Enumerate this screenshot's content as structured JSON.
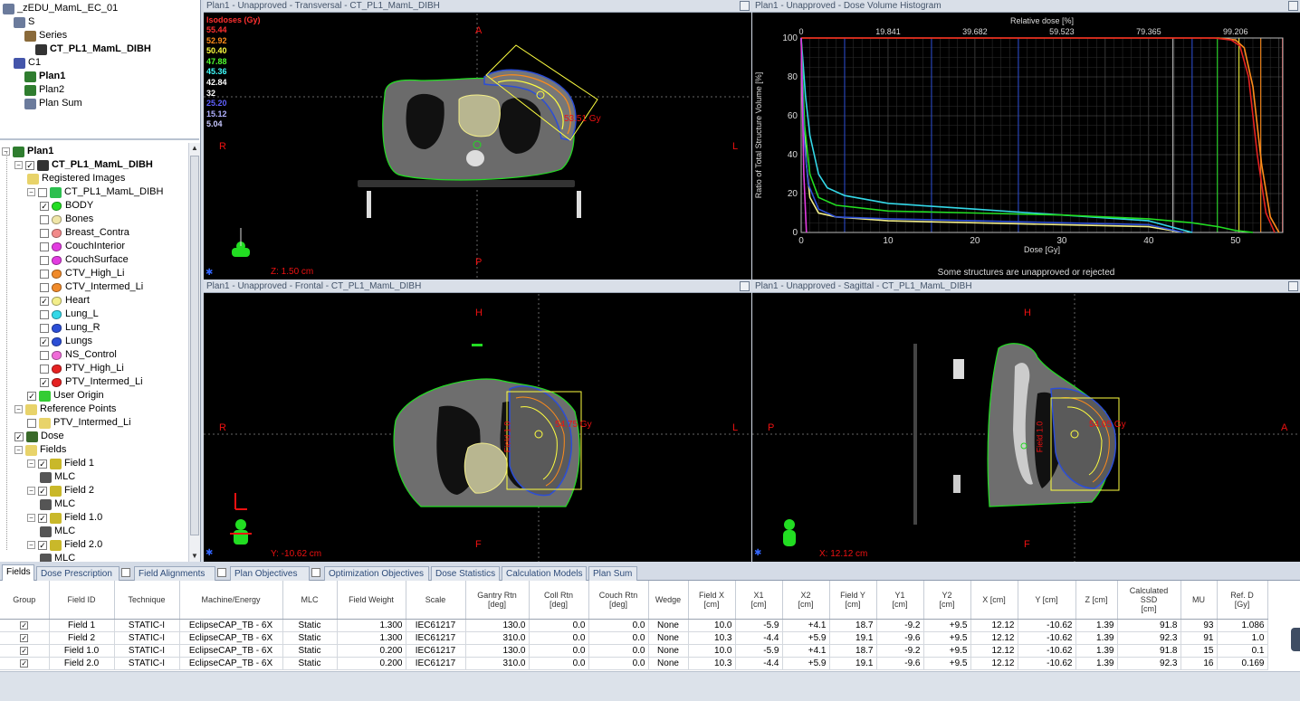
{
  "top_tree": {
    "items": [
      {
        "label": "_zEDU_MamL_EC_01",
        "indent": 0
      },
      {
        "label": "S",
        "indent": 1
      },
      {
        "label": "Series",
        "indent": 2
      },
      {
        "label": "CT_PL1_MamL_DIBH",
        "indent": 3,
        "bold": true
      },
      {
        "label": "C1",
        "indent": 1
      },
      {
        "label": "Plan1",
        "indent": 2,
        "bold": true
      },
      {
        "label": "Plan2",
        "indent": 2
      },
      {
        "label": "Plan Sum",
        "indent": 2
      }
    ]
  },
  "plan_tree": {
    "title": "Plan1",
    "image": "CT_PL1_MamL_DIBH",
    "registered": "Registered Images",
    "structure_set": "CT_PL1_MamL_DIBH",
    "structures": [
      {
        "label": "BODY",
        "checked": true,
        "color": "#22dd22"
      },
      {
        "label": "Bones",
        "checked": false,
        "color": "#f0e6a8"
      },
      {
        "label": "Breast_Contra",
        "checked": false,
        "color": "#f28a8a"
      },
      {
        "label": "CouchInterior",
        "checked": false,
        "color": "#e23ce0"
      },
      {
        "label": "CouchSurface",
        "checked": false,
        "color": "#e23ce0"
      },
      {
        "label": "CTV_High_Li",
        "checked": false,
        "color": "#f08a2a"
      },
      {
        "label": "CTV_Intermed_Li",
        "checked": false,
        "color": "#f08a2a"
      },
      {
        "label": "Heart",
        "checked": true,
        "color": "#f3ee8a"
      },
      {
        "label": "Lung_L",
        "checked": false,
        "color": "#34d8e8"
      },
      {
        "label": "Lung_R",
        "checked": false,
        "color": "#2c4ed6"
      },
      {
        "label": "Lungs",
        "checked": true,
        "color": "#2c4ed6"
      },
      {
        "label": "NS_Control",
        "checked": false,
        "color": "#ef6cd8"
      },
      {
        "label": "PTV_High_Li",
        "checked": false,
        "color": "#e52222"
      },
      {
        "label": "PTV_Intermed_Li",
        "checked": true,
        "color": "#e52222"
      }
    ],
    "user_origin": "User Origin",
    "reference_points": "Reference Points",
    "ref_point": "PTV_Intermed_Li",
    "dose": "Dose",
    "fields_label": "Fields",
    "fields": [
      "Field 1",
      "Field 2",
      "Field 1.0",
      "Field 2.0"
    ],
    "mlc_label": "MLC"
  },
  "viewports": {
    "transversal": {
      "title": "Plan1 - Unapproved - Transversal - CT_PL1_MamL_DIBH",
      "dirs": {
        "top": "A",
        "bottom": "P",
        "left": "R",
        "right": "L"
      },
      "coord": "Z: 1.50 cm",
      "hotspot": "53.51 Gy",
      "isodose_title": "Isodoses (Gy)",
      "isodoses": [
        {
          "value": "55.44",
          "color": "#ff3030"
        },
        {
          "value": "52.92",
          "color": "#ff8c1a"
        },
        {
          "value": "50.40",
          "color": "#ffff40"
        },
        {
          "value": "47.88",
          "color": "#50ff30"
        },
        {
          "value": "45.36",
          "color": "#40ffff"
        },
        {
          "value": "42.84",
          "color": "#ffffff"
        },
        {
          "value": "32",
          "color": "#ffffff"
        },
        {
          "value": "25.20",
          "color": "#6060ff"
        },
        {
          "value": "15.12",
          "color": "#b0b0ff"
        },
        {
          "value": "5.04",
          "color": "#c8c8ff"
        }
      ]
    },
    "dvh": {
      "title": "Plan1 - Unapproved - Dose Volume Histogram",
      "footer": "Some structures are unapproved or rejected"
    },
    "frontal": {
      "title": "Plan1 - Unapproved - Frontal - CT_PL1_MamL_DIBH",
      "dirs": {
        "top": "H",
        "bottom": "F",
        "left": "R",
        "right": "L"
      },
      "coord": "Y: -10.62 cm",
      "hotspot": "54.75 Gy",
      "field_label": "Field 1.0"
    },
    "sagittal": {
      "title": "Plan1 - Unapproved - Sagittal - CT_PL1_MamL_DIBH",
      "dirs": {
        "top": "H",
        "bottom": "F",
        "left": "P",
        "right": "A"
      },
      "coord": "X: 12.12 cm",
      "hotspot": "54.05 Gy",
      "field_label": "Field 1.0"
    }
  },
  "chart_data": {
    "type": "line",
    "title": "",
    "xlabel": "Dose [Gy]",
    "ylabel": "Ratio of Total Structure Volume [%]",
    "x2label": "Relative dose [%]",
    "xlim": [
      0,
      55.44
    ],
    "ylim": [
      0,
      100
    ],
    "xticks": [
      0,
      10,
      20,
      30,
      40,
      50
    ],
    "yticks": [
      0,
      20,
      40,
      60,
      80,
      100
    ],
    "x2ticks": [
      "0",
      "19.841",
      "39.682",
      "59.523",
      "79.365",
      "99.206"
    ],
    "grid": true,
    "series": [
      {
        "color": "#ff8c1a",
        "x": [
          0,
          48,
          50,
          51,
          52,
          53,
          54,
          55
        ],
        "y": [
          100,
          100,
          99,
          95,
          75,
          35,
          8,
          0
        ]
      },
      {
        "color": "#e52222",
        "x": [
          0,
          47.5,
          49.5,
          50.5,
          51.5,
          52.5,
          53.5,
          54.5
        ],
        "y": [
          100,
          100,
          99,
          96,
          80,
          40,
          10,
          0
        ]
      },
      {
        "color": "#34d8e8",
        "x": [
          0,
          0.5,
          1,
          2,
          3,
          5,
          10,
          20,
          30,
          40,
          45
        ],
        "y": [
          100,
          70,
          50,
          30,
          23,
          19,
          15,
          12,
          9,
          6,
          0
        ]
      },
      {
        "color": "#f3ee8a",
        "x": [
          0,
          0.3,
          0.6,
          1,
          2,
          4,
          10,
          20,
          30,
          40,
          44
        ],
        "y": [
          100,
          60,
          35,
          18,
          10,
          8,
          6,
          5,
          4,
          3,
          0
        ]
      },
      {
        "color": "#22dd22",
        "x": [
          0,
          0.4,
          1,
          2,
          4,
          10,
          20,
          30,
          40,
          45,
          48,
          50,
          52
        ],
        "y": [
          100,
          55,
          30,
          18,
          14,
          11,
          10,
          9,
          7,
          5,
          3,
          1,
          0
        ]
      },
      {
        "color": "#2c4ed6",
        "x": [
          0,
          0.3,
          0.8,
          2,
          4,
          10,
          20,
          30,
          40,
          44
        ],
        "y": [
          100,
          50,
          25,
          12,
          8,
          7,
          6,
          5,
          4,
          0
        ]
      },
      {
        "color": "#e23ce0",
        "x": [
          0,
          0.3,
          0.6
        ],
        "y": [
          100,
          30,
          0
        ]
      }
    ]
  },
  "tabs": [
    {
      "label": "Fields",
      "active": true
    },
    {
      "label": "Dose Prescription"
    },
    {
      "label": "Field Alignments",
      "cb": true
    },
    {
      "label": "Plan Objectives",
      "cb": true
    },
    {
      "label": "Optimization Objectives",
      "cb": true
    },
    {
      "label": "Dose Statistics"
    },
    {
      "label": "Calculation Models"
    },
    {
      "label": "Plan Sum"
    }
  ],
  "table": {
    "columns": [
      "Group",
      "Field ID",
      "Technique",
      "Machine/Energy",
      "MLC",
      "Field Weight",
      "Scale",
      "Gantry Rtn\n[deg]",
      "Coll Rtn\n[deg]",
      "Couch Rtn\n[deg]",
      "Wedge",
      "Field X\n[cm]",
      "X1\n[cm]",
      "X2\n[cm]",
      "Field Y\n[cm]",
      "Y1\n[cm]",
      "Y2\n[cm]",
      "X [cm]",
      "Y [cm]",
      "Z [cm]",
      "Calculated\nSSD\n[cm]",
      "MU",
      "Ref. D\n[Gy]"
    ],
    "rows": [
      [
        "✓",
        "Field 1",
        "STATIC-I",
        "EclipseCAP_TB - 6X",
        "Static",
        "1.300",
        "IEC61217",
        "130.0",
        "0.0",
        "0.0",
        "None",
        "10.0",
        "-5.9",
        "+4.1",
        "18.7",
        "-9.2",
        "+9.5",
        "12.12",
        "-10.62",
        "1.39",
        "91.8",
        "93",
        "1.086"
      ],
      [
        "✓",
        "Field 2",
        "STATIC-I",
        "EclipseCAP_TB - 6X",
        "Static",
        "1.300",
        "IEC61217",
        "310.0",
        "0.0",
        "0.0",
        "None",
        "10.3",
        "-4.4",
        "+5.9",
        "19.1",
        "-9.6",
        "+9.5",
        "12.12",
        "-10.62",
        "1.39",
        "92.3",
        "91",
        "1.0"
      ],
      [
        "✓",
        "Field 1.0",
        "STATIC-I",
        "EclipseCAP_TB - 6X",
        "Static",
        "0.200",
        "IEC61217",
        "130.0",
        "0.0",
        "0.0",
        "None",
        "10.0",
        "-5.9",
        "+4.1",
        "18.7",
        "-9.2",
        "+9.5",
        "12.12",
        "-10.62",
        "1.39",
        "91.8",
        "15",
        "0.1"
      ],
      [
        "✓",
        "Field 2.0",
        "STATIC-I",
        "EclipseCAP_TB - 6X",
        "Static",
        "0.200",
        "IEC61217",
        "310.0",
        "0.0",
        "0.0",
        "None",
        "10.3",
        "-4.4",
        "+5.9",
        "19.1",
        "-9.6",
        "+9.5",
        "12.12",
        "-10.62",
        "1.39",
        "92.3",
        "16",
        "0.169"
      ]
    ]
  }
}
